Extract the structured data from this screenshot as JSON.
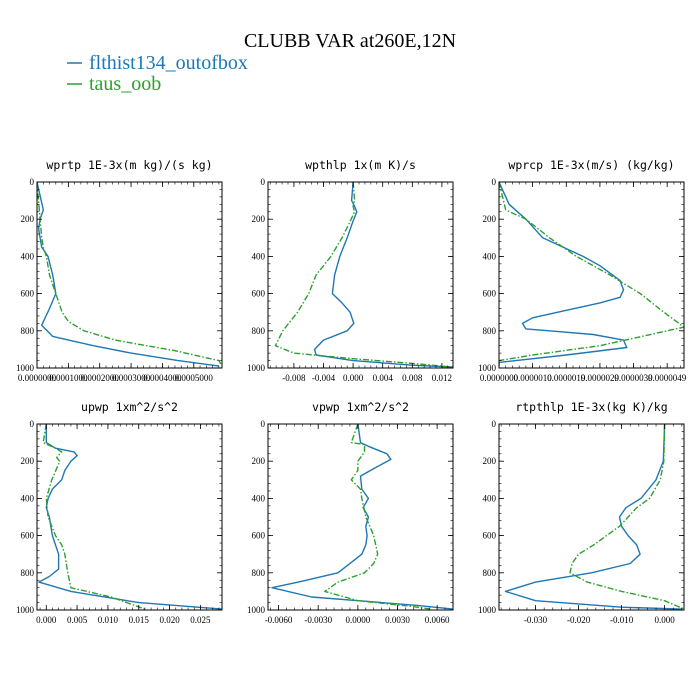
{
  "figure": {
    "title": "CLUBB VAR at260E,12N",
    "legend": [
      {
        "label": "flthist134_outofbox",
        "color": "#1f77b4",
        "dash": "solid"
      },
      {
        "label": "taus_oob",
        "color": "#2ca02c",
        "dash": "dashdot"
      }
    ]
  },
  "chart_data": [
    {
      "type": "line",
      "title": "wprtp  1E-3x(m kg)/(s kg)",
      "xlim": [
        0,
        0.00059
      ],
      "ylim": [
        1000,
        0
      ],
      "xticks": [
        0,
        0.0001,
        0.0002,
        0.0003,
        0.0004,
        0.0005
      ],
      "xtick_labels": [
        "0.0000000",
        "0.0001000",
        "0.0002000",
        "0.0003000",
        "0.0004000",
        "0.0005000"
      ],
      "yticks": [
        0,
        200,
        400,
        600,
        800,
        1000
      ],
      "ytick_labels": [
        "0",
        "200",
        "400",
        "600",
        "800",
        "1000"
      ],
      "series": [
        {
          "name": "flthist134_outofbox",
          "color": "#1f77b4",
          "dash": "solid",
          "x": [
            0,
            2e-05,
            1e-05,
            5e-06,
            1e-05,
            1.5e-05,
            3.5e-05,
            5e-05,
            6e-05,
            4e-05,
            1.5e-05,
            5e-05,
            0.00018,
            0.0003,
            0.00045,
            0.00058
          ],
          "y": [
            0,
            150,
            200,
            250,
            300,
            350,
            400,
            500,
            600,
            680,
            770,
            830,
            880,
            920,
            960,
            990
          ]
        },
        {
          "name": "taus_oob",
          "color": "#2ca02c",
          "dash": "dashdot",
          "x": [
            0,
            1e-05,
            1.5e-05,
            2e-05,
            3e-05,
            4e-05,
            6e-05,
            8e-05,
            0.0001,
            0.00015,
            0.00025,
            0.00035,
            0.00045,
            0.0005,
            0.00058,
            0.00059
          ],
          "y": [
            0,
            200,
            300,
            350,
            400,
            500,
            600,
            700,
            750,
            800,
            850,
            880,
            910,
            930,
            960,
            990
          ]
        }
      ]
    },
    {
      "type": "line",
      "title": "wpthlp  1x(m K)/s",
      "xlim": [
        -0.0115,
        0.0135
      ],
      "ylim": [
        1000,
        0
      ],
      "xticks": [
        -0.008,
        -0.004,
        0,
        0.004,
        0.008,
        0.012
      ],
      "xtick_labels": [
        "-0.008",
        "-0.004",
        "0.000",
        "0.004",
        "0.008",
        "0.012"
      ],
      "yticks": [
        0,
        200,
        400,
        600,
        800,
        1000
      ],
      "ytick_labels": [
        "0",
        "200",
        "400",
        "600",
        "800",
        "1000"
      ],
      "series": [
        {
          "name": "flthist134_outofbox",
          "color": "#1f77b4",
          "dash": "solid",
          "x": [
            0,
            -0.0002,
            0.0002,
            0.0005,
            -0.0001,
            -0.0008,
            -0.0018,
            -0.0025,
            -0.0028,
            -0.0015,
            -0.0004,
            0.0001,
            -0.0008,
            -0.004,
            -0.0052,
            -0.005,
            0,
            0.008,
            0.0135
          ],
          "y": [
            0,
            100,
            130,
            160,
            220,
            300,
            400,
            500,
            600,
            650,
            700,
            760,
            800,
            850,
            900,
            930,
            960,
            985,
            995
          ]
        },
        {
          "name": "taus_oob",
          "color": "#2ca02c",
          "dash": "dashdot",
          "x": [
            0,
            0.0002,
            0,
            0.0002,
            -0.0005,
            -0.0015,
            -0.003,
            -0.005,
            -0.006,
            -0.0075,
            -0.0095,
            -0.0105,
            -0.008,
            0,
            0.008,
            0.0135
          ],
          "y": [
            0,
            100,
            130,
            160,
            220,
            300,
            400,
            500,
            600,
            700,
            800,
            880,
            920,
            950,
            975,
            995
          ]
        }
      ]
    },
    {
      "type": "line",
      "title": "wprcp  1E-3x(m/s) (kg/kg)",
      "xlim": [
        0,
        5.5e-06
      ],
      "ylim": [
        1000,
        0
      ],
      "xticks": [
        0,
        1e-06,
        2e-06,
        3e-06,
        4e-06,
        5e-06
      ],
      "xtick_labels": [
        "0.0000000",
        "0.0000010",
        "0.0000019",
        "0.0000029",
        "0.0000039",
        "0.0000049"
      ],
      "yticks": [
        0,
        200,
        400,
        600,
        800,
        1000
      ],
      "ytick_labels": [
        "0",
        "200",
        "400",
        "600",
        "800",
        "1000"
      ],
      "series": [
        {
          "name": "flthist134_outofbox",
          "color": "#1f77b4",
          "dash": "solid",
          "x": [
            0,
            3e-07,
            8e-07,
            1.3e-06,
            2.5e-06,
            3e-06,
            3.6e-06,
            3.7e-06,
            3.6e-06,
            3e-06,
            2e-06,
            1e-06,
            7e-07,
            8e-07,
            1.5e-06,
            2.8e-06,
            3.7e-06,
            3.8e-06,
            2e-06,
            0,
            0
          ],
          "y": [
            0,
            120,
            200,
            300,
            400,
            450,
            530,
            580,
            620,
            650,
            690,
            730,
            760,
            790,
            800,
            820,
            850,
            890,
            930,
            970,
            990
          ]
        },
        {
          "name": "taus_oob",
          "color": "#2ca02c",
          "dash": "dashdot",
          "x": [
            0,
            2e-07,
            8e-07,
            1.5e-06,
            2.3e-06,
            3.3e-06,
            4.2e-06,
            4.9e-06,
            5.5e-06,
            3e-06,
            1e-06,
            0,
            0
          ],
          "y": [
            0,
            150,
            200,
            300,
            400,
            500,
            600,
            700,
            780,
            880,
            930,
            960,
            990
          ]
        }
      ]
    },
    {
      "type": "line",
      "title": "upwp  1xm^2/s^2",
      "xlim": [
        -0.0015,
        0.0285
      ],
      "ylim": [
        1000,
        0
      ],
      "xticks": [
        0,
        0.005,
        0.01,
        0.015,
        0.02,
        0.025
      ],
      "xtick_labels": [
        "0.000",
        "0.005",
        "0.010",
        "0.015",
        "0.020",
        "0.025"
      ],
      "yticks": [
        0,
        200,
        400,
        600,
        800,
        1000
      ],
      "ytick_labels": [
        "0",
        "200",
        "400",
        "600",
        "800",
        "1000"
      ],
      "series": [
        {
          "name": "flthist134_outofbox",
          "color": "#1f77b4",
          "dash": "solid",
          "x": [
            0,
            0,
            0.0015,
            0.0045,
            0.005,
            0.004,
            0.003,
            0.0025,
            0.001,
            0.0003,
            0,
            0.0005,
            0.001,
            0.002,
            0.002,
            0.0005,
            -0.0012,
            0.004,
            0.015,
            0.0285
          ],
          "y": [
            0,
            100,
            130,
            150,
            170,
            200,
            250,
            300,
            350,
            400,
            450,
            500,
            600,
            700,
            780,
            820,
            850,
            900,
            960,
            995
          ]
        },
        {
          "name": "taus_oob",
          "color": "#2ca02c",
          "dash": "dashdot",
          "x": [
            0,
            -0.0005,
            0.0015,
            0.0025,
            0.0017,
            0.0022,
            0.0009,
            0,
            0.0003,
            0.0015,
            0.0025,
            0.003,
            0.0035,
            0.004,
            0.0105,
            0.016
          ],
          "y": [
            0,
            100,
            130,
            150,
            180,
            200,
            300,
            400,
            500,
            600,
            650,
            700,
            800,
            880,
            930,
            995
          ]
        }
      ]
    },
    {
      "type": "line",
      "title": "vpwp  1xm^2/s^2",
      "xlim": [
        -0.0068,
        0.0072
      ],
      "ylim": [
        1000,
        0
      ],
      "xticks": [
        -0.006,
        -0.003,
        0,
        0.003,
        0.006
      ],
      "xtick_labels": [
        "-0.0060",
        "-0.0030",
        "0.0000",
        "0.0030",
        "0.0060"
      ],
      "yticks": [
        0,
        200,
        400,
        600,
        800,
        1000
      ],
      "ytick_labels": [
        "0",
        "200",
        "400",
        "600",
        "800",
        "1000"
      ],
      "series": [
        {
          "name": "flthist134_outofbox",
          "color": "#1f77b4",
          "dash": "solid",
          "x": [
            0,
            0.0002,
            0.0008,
            0.0022,
            0.0025,
            0.0012,
            0.0002,
            0.0003,
            0.0008,
            0.0004,
            0.0008,
            0.0006,
            0.0007,
            0.0006,
            0.0003,
            -0.0015,
            -0.0045,
            -0.0065,
            -0.0035,
            0.0045,
            0.0072
          ],
          "y": [
            0,
            100,
            120,
            160,
            190,
            240,
            280,
            350,
            400,
            450,
            500,
            550,
            600,
            650,
            700,
            800,
            850,
            880,
            930,
            975,
            995
          ]
        },
        {
          "name": "taus_oob",
          "color": "#2ca02c",
          "dash": "dashdot",
          "x": [
            0,
            -0.0005,
            0.0005,
            0.0005,
            0,
            0,
            -0.0005,
            0.0002,
            0.0003,
            0.0006,
            0.0012,
            0.0015,
            0.0012,
            0.0005,
            -0.0015,
            -0.0025,
            0,
            0.004,
            0.0055
          ],
          "y": [
            0,
            100,
            110,
            150,
            200,
            250,
            300,
            350,
            400,
            500,
            600,
            700,
            750,
            800,
            850,
            900,
            950,
            980,
            995
          ]
        }
      ]
    },
    {
      "type": "line",
      "title": "rtpthlp  1E-3x(kg K)/kg",
      "xlim": [
        -0.0385,
        0.0045
      ],
      "ylim": [
        1000,
        0
      ],
      "xticks": [
        -0.03,
        -0.02,
        -0.01,
        0
      ],
      "xtick_labels": [
        "-0.030",
        "-0.020",
        "-0.010",
        "0.000"
      ],
      "yticks": [
        0,
        200,
        400,
        600,
        800,
        1000
      ],
      "ytick_labels": [
        "0",
        "200",
        "400",
        "600",
        "800",
        "1000"
      ],
      "series": [
        {
          "name": "flthist134_outofbox",
          "color": "#1f77b4",
          "dash": "solid",
          "x": [
            0,
            -0.0003,
            -0.002,
            -0.0055,
            -0.009,
            -0.0105,
            -0.01,
            -0.0085,
            -0.0065,
            -0.0057,
            -0.008,
            -0.017,
            -0.03,
            -0.037,
            -0.03,
            -0.01,
            0.004
          ],
          "y": [
            0,
            200,
            300,
            400,
            450,
            500,
            550,
            600,
            650,
            700,
            750,
            800,
            850,
            900,
            950,
            985,
            995
          ]
        },
        {
          "name": "taus_oob",
          "color": "#2ca02c",
          "dash": "dashdot",
          "x": [
            0,
            -0.0002,
            -0.001,
            -0.0035,
            -0.0065,
            -0.0085,
            -0.0105,
            -0.0135,
            -0.0165,
            -0.02,
            -0.0215,
            -0.022,
            -0.018,
            -0.01,
            0,
            0.0045
          ],
          "y": [
            0,
            200,
            300,
            400,
            450,
            500,
            550,
            600,
            650,
            700,
            750,
            800,
            850,
            900,
            950,
            995
          ]
        }
      ]
    }
  ]
}
